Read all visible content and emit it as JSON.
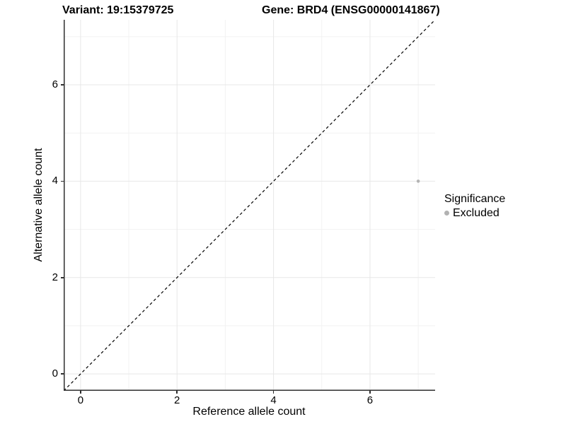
{
  "chart_data": {
    "type": "scatter",
    "title_left": "Variant: 19:15379725",
    "title_right": "Gene: BRD4 (ENSG00000141867)",
    "xlabel": "Reference allele count",
    "ylabel": "Alternative allele count",
    "xlim": [
      -0.35,
      7.35
    ],
    "ylim": [
      -0.35,
      7.35
    ],
    "x_ticks": [
      0,
      2,
      4,
      6
    ],
    "y_ticks": [
      0,
      2,
      4,
      6
    ],
    "x_minor_ticks": [
      1,
      3,
      5,
      7
    ],
    "y_minor_ticks": [
      1,
      3,
      5,
      7
    ],
    "grid": true,
    "identity_line": {
      "style": "dashed",
      "from": [
        -0.35,
        -0.35
      ],
      "to": [
        7.35,
        7.35
      ],
      "color": "#000000"
    },
    "series": [
      {
        "name": "Excluded",
        "color": "#b4b4b4",
        "points": [
          {
            "x": 7,
            "y": 4
          }
        ]
      }
    ],
    "legend": {
      "title": "Significance",
      "position": "right",
      "items": [
        {
          "label": "Excluded",
          "color": "#b2b2b2"
        }
      ]
    },
    "colors": {
      "axis_line": "#2f2f2f",
      "grid_major": "#e7e7e7",
      "grid_minor": "#f2f2f2",
      "background": "#ffffff"
    }
  }
}
